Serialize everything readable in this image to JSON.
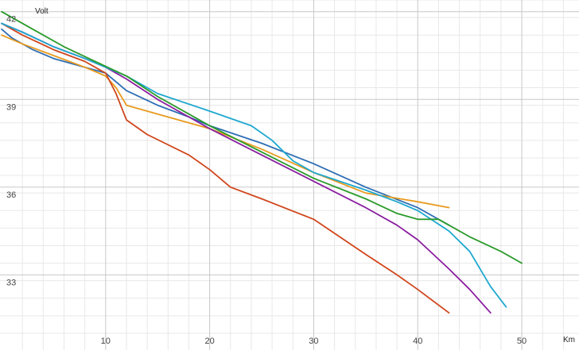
{
  "chart_data": {
    "type": "line",
    "title": "",
    "xlabel": "Km",
    "ylabel": "Volt",
    "xlim": [
      0,
      55.5
    ],
    "ylim": [
      31,
      42.4
    ],
    "x_ticks": [
      10,
      20,
      30,
      40,
      50
    ],
    "y_ticks": [
      33,
      36,
      39,
      42
    ],
    "grid": true,
    "legend": "none",
    "series": [
      {
        "color": "#2f6eb5",
        "x": [
          0,
          1,
          3,
          5,
          8,
          10,
          12,
          15,
          18,
          20,
          25,
          30,
          35,
          40,
          43
        ],
        "y": [
          41.4,
          41.1,
          40.7,
          40.4,
          40.1,
          39.9,
          39.3,
          38.8,
          38.4,
          38.1,
          37.5,
          36.8,
          36.0,
          35.3,
          34.7
        ]
      },
      {
        "color": "#e89b1d",
        "x": [
          0,
          2,
          5,
          8,
          10,
          11,
          12,
          15,
          20,
          25,
          30,
          35,
          40,
          43
        ],
        "y": [
          41.2,
          40.9,
          40.5,
          40.1,
          39.8,
          39.4,
          38.8,
          38.5,
          38.0,
          37.3,
          36.5,
          35.8,
          35.5,
          35.3
        ]
      },
      {
        "color": "#d0461c",
        "x": [
          0,
          2,
          5,
          8,
          10,
          11,
          12,
          14,
          18,
          20,
          22,
          25,
          30,
          35,
          38,
          40,
          43
        ],
        "y": [
          41.6,
          41.2,
          40.7,
          40.3,
          39.9,
          39.2,
          38.3,
          37.8,
          37.1,
          36.6,
          36.0,
          35.6,
          34.9,
          33.7,
          33.0,
          32.5,
          31.7
        ]
      },
      {
        "color": "#8a1ea0",
        "x": [
          0,
          2,
          5,
          8,
          10,
          12,
          15,
          20,
          25,
          30,
          35,
          38,
          40,
          43,
          45,
          47
        ],
        "y": [
          41.6,
          41.3,
          40.8,
          40.4,
          40.1,
          39.7,
          39.0,
          38.0,
          37.1,
          36.2,
          35.3,
          34.7,
          34.2,
          33.2,
          32.5,
          31.7
        ]
      },
      {
        "color": "#1ea8cf",
        "x": [
          0,
          2,
          5,
          8,
          10,
          12,
          15,
          20,
          24,
          26,
          28,
          30,
          35,
          38,
          40,
          43,
          45,
          47,
          48.5
        ],
        "y": [
          41.6,
          41.3,
          40.8,
          40.4,
          40.1,
          39.8,
          39.2,
          38.6,
          38.1,
          37.6,
          36.9,
          36.5,
          35.9,
          35.5,
          35.2,
          34.5,
          33.8,
          32.6,
          31.9
        ]
      },
      {
        "color": "#2a9a2a",
        "x": [
          0,
          3,
          6,
          9,
          12,
          15,
          20,
          25,
          30,
          35,
          38,
          40,
          42,
          45,
          48,
          50
        ],
        "y": [
          42.0,
          41.4,
          40.8,
          40.3,
          39.8,
          39.1,
          38.1,
          37.2,
          36.3,
          35.6,
          35.1,
          34.9,
          34.9,
          34.3,
          33.8,
          33.4
        ]
      }
    ]
  }
}
